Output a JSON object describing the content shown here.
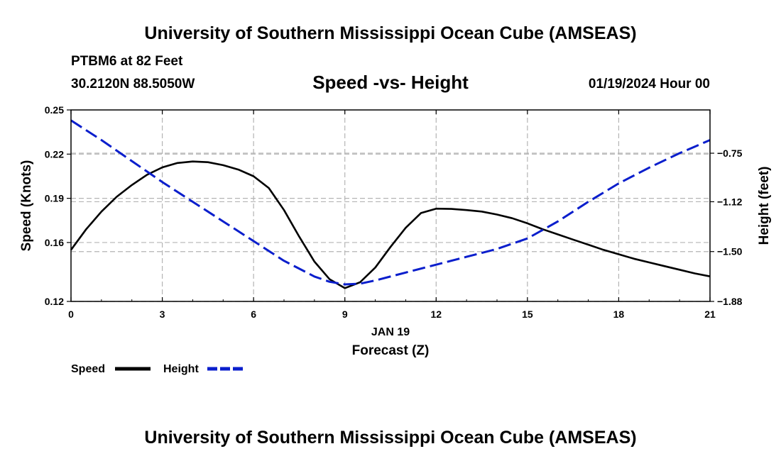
{
  "header": {
    "title": "University of Southern Mississippi Ocean Cube (AMSEAS)",
    "station": "PTBM6 at 82 Feet",
    "coordinates": "30.2120N  88.5050W",
    "date": "01/19/2024 Hour 00"
  },
  "footer": {
    "title": "University of Southern Mississippi Ocean Cube (AMSEAS)"
  },
  "chart_data": {
    "type": "line",
    "title": "Speed -vs- Height",
    "xlabel": "Forecast (Z)",
    "xdate_label": "JAN 19",
    "ylabel": "Speed (Knots)",
    "y2label": "Height (feet)",
    "xlim": [
      0,
      21
    ],
    "ylim": [
      0.12,
      0.25
    ],
    "y2lim": [
      -1.88,
      -0.42
    ],
    "xticks": [
      0,
      3,
      6,
      9,
      12,
      15,
      18,
      21
    ],
    "xtick_labels": [
      "0",
      "3",
      "6",
      "9",
      "12",
      "15",
      "18",
      "21"
    ],
    "yticks": [
      0.12,
      0.16,
      0.19,
      0.22,
      0.25
    ],
    "ytick_labels": [
      "0.12",
      "0.16",
      "0.19",
      "0.22",
      "0.25"
    ],
    "y2ticks": [
      -1.88,
      -1.5,
      -1.12,
      -0.75
    ],
    "y2tick_labels": [
      "−1.88",
      "−1.50",
      "−1.12",
      "−0.75"
    ],
    "grid": true,
    "legend": [
      {
        "name": "Speed",
        "color": "#000000",
        "style": "solid"
      },
      {
        "name": "Height",
        "color": "#0a1ecc",
        "style": "dashed"
      }
    ],
    "series": [
      {
        "name": "Speed",
        "axis": "left",
        "color": "#000000",
        "style": "solid",
        "x": [
          0,
          0.5,
          1,
          1.5,
          2,
          2.5,
          3,
          3.5,
          4,
          4.5,
          5,
          5.5,
          6,
          6.5,
          7,
          7.5,
          8,
          8.5,
          9,
          9.5,
          10,
          10.5,
          11,
          11.5,
          12,
          12.5,
          13,
          13.5,
          14,
          14.5,
          15,
          15.5,
          16,
          16.5,
          17,
          17.5,
          18,
          18.5,
          19,
          19.5,
          20,
          20.5,
          21
        ],
        "values": [
          0.155,
          0.169,
          0.181,
          0.191,
          0.199,
          0.206,
          0.211,
          0.214,
          0.215,
          0.2145,
          0.2125,
          0.2095,
          0.205,
          0.197,
          0.182,
          0.164,
          0.147,
          0.135,
          0.129,
          0.133,
          0.143,
          0.157,
          0.17,
          0.18,
          0.183,
          0.1828,
          0.182,
          0.181,
          0.179,
          0.1765,
          0.173,
          0.169,
          0.1655,
          0.162,
          0.1585,
          0.155,
          0.152,
          0.149,
          0.1465,
          0.144,
          0.1415,
          0.139,
          0.137
        ]
      },
      {
        "name": "Height",
        "axis": "right",
        "color": "#0a1ecc",
        "style": "dashed",
        "x": [
          0,
          1,
          2,
          3,
          4,
          5,
          6,
          7,
          8,
          8.5,
          9,
          9.5,
          10,
          11,
          12,
          13,
          14,
          15,
          16,
          17,
          18,
          19,
          20,
          21
        ],
        "values": [
          -0.5,
          -0.65,
          -0.81,
          -0.97,
          -1.12,
          -1.27,
          -1.42,
          -1.57,
          -1.69,
          -1.73,
          -1.75,
          -1.745,
          -1.72,
          -1.66,
          -1.6,
          -1.54,
          -1.48,
          -1.4,
          -1.27,
          -1.12,
          -0.98,
          -0.86,
          -0.75,
          -0.65
        ]
      }
    ]
  }
}
